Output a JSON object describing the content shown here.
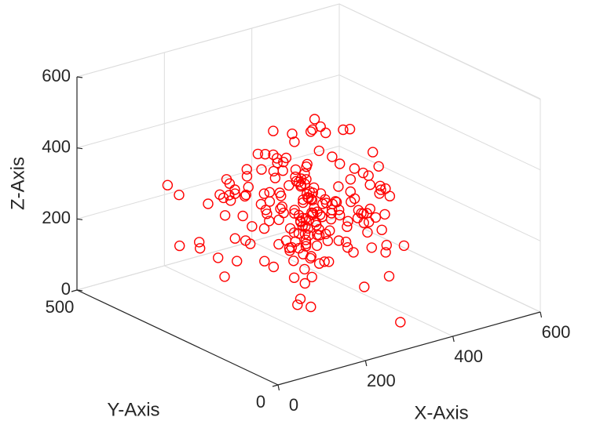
{
  "chart_data": {
    "type": "scatter",
    "title": "",
    "xlabel": "X-Axis",
    "ylabel": "Y-Axis",
    "zlabel": "Z-Axis",
    "xlim": [
      0,
      600
    ],
    "ylim": [
      0,
      500
    ],
    "zlim": [
      0,
      600
    ],
    "xticks": [
      0,
      200,
      400,
      600
    ],
    "xtick_labels": [
      "0",
      "200",
      "400",
      "600"
    ],
    "yticks": [
      0,
      500
    ],
    "ytick_labels": [
      "0",
      "500"
    ],
    "zticks": [
      0,
      200,
      400,
      600
    ],
    "ztick_labels": [
      "0",
      "200",
      "400",
      "600"
    ],
    "grid": true,
    "projection": "3d",
    "marker": "circle-open",
    "marker_color": "#ff0000",
    "series": [
      {
        "points": [
          [
            300,
            500,
            140
          ],
          [
            335,
            60,
            30
          ],
          [
            462,
            322,
            214
          ],
          [
            170,
            287,
            137
          ],
          [
            218,
            306,
            159
          ],
          [
            187,
            478,
            243
          ],
          [
            244,
            245,
            192
          ],
          [
            221,
            373,
            30
          ],
          [
            392,
            219,
            232
          ],
          [
            244,
            346,
            138
          ],
          [
            268,
            325,
            83
          ],
          [
            385,
            345,
            212
          ],
          [
            391,
            373,
            238
          ],
          [
            265,
            236,
            168
          ],
          [
            294,
            440,
            231
          ],
          [
            395,
            153,
            89
          ],
          [
            401,
            293,
            223
          ],
          [
            374,
            261,
            247
          ],
          [
            260,
            200,
            166
          ],
          [
            331,
            285,
            175
          ],
          [
            322,
            344,
            202
          ],
          [
            208,
            420,
            89
          ],
          [
            193,
            456,
            225
          ],
          [
            273,
            374,
            294
          ],
          [
            243,
            409,
            234
          ],
          [
            392,
            337,
            241
          ],
          [
            186,
            447,
            89
          ],
          [
            396,
            333,
            109
          ],
          [
            302,
            244,
            70
          ],
          [
            254,
            287,
            92
          ],
          [
            290,
            380,
            144
          ],
          [
            230,
            446,
            85
          ],
          [
            232,
            359,
            141
          ],
          [
            286,
            245,
            97
          ],
          [
            211,
            361,
            212
          ],
          [
            290,
            389,
            250
          ],
          [
            258,
            388,
            254
          ],
          [
            397,
            313,
            122
          ],
          [
            316,
            228,
            117
          ],
          [
            206,
            373,
            88
          ],
          [
            270,
            212,
            14
          ],
          [
            336,
            296,
            135
          ],
          [
            256,
            358,
            256
          ],
          [
            324,
            348,
            244
          ],
          [
            276,
            233,
            67
          ],
          [
            395,
            215,
            26
          ],
          [
            248,
            352,
            258
          ],
          [
            273,
            295,
            145
          ],
          [
            304,
            268,
            121
          ],
          [
            375,
            236,
            191
          ],
          [
            286,
            418,
            217
          ],
          [
            289,
            336,
            183
          ],
          [
            366,
            371,
            238
          ],
          [
            242,
            391,
            287
          ],
          [
            299,
            323,
            190
          ],
          [
            302,
            285,
            148
          ],
          [
            324,
            312,
            151
          ],
          [
            244,
            225,
            98
          ],
          [
            260,
            227,
            32
          ],
          [
            349,
            381,
            302
          ],
          [
            349,
            277,
            154
          ],
          [
            221,
            358,
            252
          ],
          [
            303,
            249,
            120
          ],
          [
            324,
            342,
            208
          ],
          [
            378,
            350,
            153
          ],
          [
            274,
            332,
            169
          ],
          [
            336,
            298,
            151
          ],
          [
            323,
            372,
            233
          ],
          [
            330,
            318,
            200
          ],
          [
            261,
            245,
            129
          ],
          [
            258,
            402,
            231
          ],
          [
            382,
            353,
            202
          ],
          [
            236,
            344,
            211
          ],
          [
            245,
            402,
            228
          ],
          [
            371,
            341,
            204
          ],
          [
            337,
            359,
            225
          ],
          [
            341,
            319,
            139
          ],
          [
            332,
            300,
            173
          ],
          [
            322,
            281,
            130
          ],
          [
            268,
            243,
            4
          ],
          [
            357,
            336,
            176
          ],
          [
            379,
            243,
            143
          ],
          [
            347,
            251,
            94
          ],
          [
            268,
            369,
            318
          ],
          [
            289,
            286,
            134
          ],
          [
            379,
            325,
            180
          ],
          [
            332,
            402,
            278
          ],
          [
            330,
            262,
            139
          ],
          [
            306,
            363,
            194
          ],
          [
            378,
            317,
            160
          ],
          [
            302,
            299,
            115
          ],
          [
            327,
            325,
            155
          ],
          [
            356,
            375,
            281
          ],
          [
            327,
            279,
            160
          ],
          [
            272,
            338,
            235
          ],
          [
            358,
            376,
            304
          ],
          [
            309,
            302,
            120
          ],
          [
            380,
            370,
            258
          ],
          [
            379,
            343,
            156
          ],
          [
            317,
            242,
            104
          ],
          [
            415,
            317,
            181
          ],
          [
            344,
            424,
            306
          ],
          [
            373,
            320,
            180
          ],
          [
            346,
            320,
            169
          ],
          [
            424,
            328,
            163
          ],
          [
            409,
            293,
            196
          ],
          [
            358,
            348,
            184
          ],
          [
            375,
            331,
            158
          ],
          [
            379,
            423,
            246
          ],
          [
            408,
            372,
            199
          ],
          [
            355,
            393,
            251
          ],
          [
            370,
            405,
            295
          ],
          [
            380,
            262,
            136
          ],
          [
            407,
            336,
            220
          ],
          [
            326,
            389,
            219
          ],
          [
            314,
            369,
            177
          ],
          [
            387,
            354,
            244
          ],
          [
            384,
            320,
            185
          ],
          [
            400,
            350,
            196
          ],
          [
            409,
            257,
            96
          ],
          [
            396,
            373,
            228
          ],
          [
            395,
            347,
            203
          ],
          [
            336,
            386,
            195
          ],
          [
            395,
            334,
            136
          ],
          [
            381,
            394,
            298
          ],
          [
            358,
            421,
            302
          ],
          [
            395,
            384,
            233
          ],
          [
            412,
            328,
            196
          ],
          [
            454,
            359,
            295
          ],
          [
            382,
            427,
            289
          ],
          [
            466,
            316,
            196
          ],
          [
            396,
            347,
            164
          ],
          [
            425,
            372,
            154
          ],
          [
            455,
            341,
            140
          ],
          [
            461,
            351,
            213
          ],
          [
            460,
            398,
            289
          ],
          [
            427,
            394,
            222
          ],
          [
            397,
            322,
            165
          ],
          [
            470,
            337,
            120
          ],
          [
            411,
            403,
            250
          ],
          [
            492,
            292,
            147
          ],
          [
            483,
            296,
            172
          ],
          [
            380,
            399,
            141
          ],
          [
            447,
            369,
            172
          ],
          [
            437,
            409,
            227
          ],
          [
            474,
            434,
            319
          ],
          [
            476,
            295,
            109
          ],
          [
            434,
            348,
            71
          ],
          [
            442,
            410,
            244
          ],
          [
            537,
            405,
            320
          ],
          [
            514,
            453,
            309
          ],
          [
            441,
            351,
            96
          ],
          [
            484,
            328,
            129
          ],
          [
            513,
            404,
            231
          ],
          [
            537,
            355,
            190
          ],
          [
            515,
            339,
            126
          ],
          [
            565,
            347,
            174
          ],
          [
            529,
            317,
            86
          ],
          [
            559,
            396,
            194
          ],
          [
            557,
            340,
            108
          ],
          [
            549,
            435,
            298
          ],
          [
            495,
            268,
            81
          ],
          [
            563,
            358,
            176
          ],
          [
            493,
            303,
            56
          ],
          [
            511,
            343,
            124
          ],
          [
            504,
            322,
            114
          ],
          [
            594,
            410,
            233
          ],
          [
            544,
            411,
            173
          ],
          [
            501,
            459,
            302
          ],
          [
            585,
            358,
            140
          ],
          [
            514,
            291,
            42
          ],
          [
            583,
            378,
            148
          ],
          [
            600,
            402,
            195
          ],
          [
            566,
            302,
            37
          ],
          [
            595,
            422,
            160
          ],
          [
            575,
            435,
            180
          ],
          [
            601,
            401,
            119
          ],
          [
            499,
            407,
            121
          ],
          [
            472,
            478,
            290
          ],
          [
            485,
            354,
            32
          ],
          [
            546,
            475,
            269
          ],
          [
            562,
            411,
            80
          ],
          [
            554,
            421,
            101
          ],
          [
            438,
            408,
            79
          ],
          [
            468,
            404,
            103
          ],
          [
            437,
            487,
            305
          ],
          [
            504,
            416,
            72
          ],
          [
            423,
            390,
            44
          ],
          [
            465,
            448,
            182
          ],
          [
            475,
            438,
            148
          ],
          [
            477,
            446,
            220
          ],
          [
            491,
            493,
            253
          ],
          [
            446,
            383,
            81
          ],
          [
            472,
            437,
            131
          ],
          [
            493,
            425,
            114
          ],
          [
            490,
            446,
            135
          ],
          [
            465,
            449,
            160
          ],
          [
            568,
            404,
            46
          ],
          [
            550,
            507,
            289
          ],
          [
            445,
            428,
            81
          ]
        ]
      }
    ]
  }
}
